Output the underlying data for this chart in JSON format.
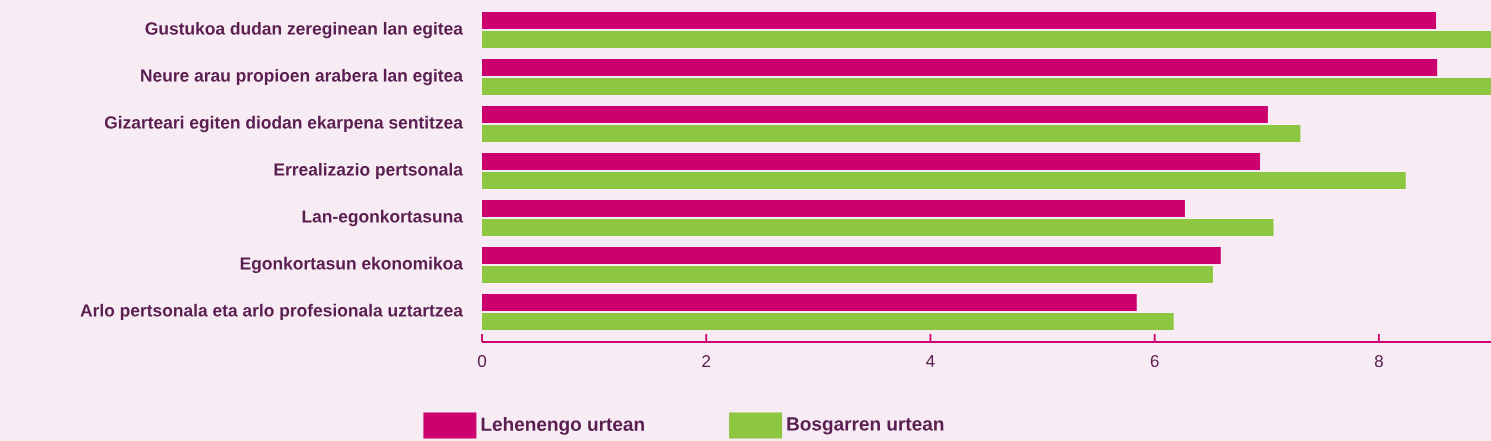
{
  "chart_data": {
    "type": "bar",
    "orientation": "horizontal",
    "categories": [
      "Gustukoa dudan zereginean lan egitea",
      "Neure arau propioen arabera lan egitea",
      "Gizarteari egiten diodan ekarpena sentitzea",
      "Errealizazio pertsonala",
      "Lan-egonkortasuna",
      "Egonkortasun ekonomikoa",
      "Arlo pertsonala eta arlo profesionala uztartzea"
    ],
    "series": [
      {
        "name": "Lehenengo urtean",
        "color": "#cc006e",
        "values": [
          8.51,
          8.52,
          7.01,
          6.94,
          6.27,
          6.59,
          5.84
        ]
      },
      {
        "name": "Bosgarren urtean",
        "color": "#8dc641",
        "values": [
          9.0,
          9.0,
          7.3,
          8.24,
          7.06,
          6.52,
          6.17
        ]
      }
    ],
    "xlim": [
      0,
      9
    ],
    "xticks": [
      0,
      2,
      4,
      6,
      8
    ],
    "grid": false,
    "legend": "bottom"
  }
}
